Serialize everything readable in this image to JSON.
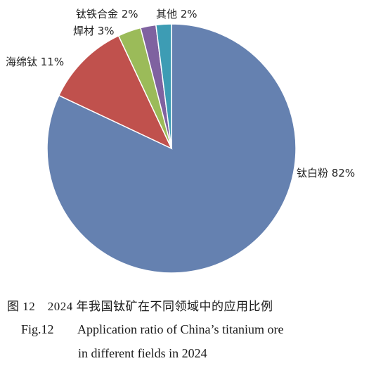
{
  "chart_data": {
    "type": "pie",
    "title": "",
    "slices": [
      {
        "label": "钛白粉",
        "value": 82,
        "display": "钛白粉 82%",
        "color": "#6581b0"
      },
      {
        "label": "海绵钛",
        "value": 11,
        "display": "海绵钛 11%",
        "color": "#c0514d"
      },
      {
        "label": "焊材",
        "value": 3,
        "display": "焊材 3%",
        "color": "#9bbb59"
      },
      {
        "label": "钛铁合金",
        "value": 2,
        "display": "钛铁合金 2%",
        "color": "#7f62a0"
      },
      {
        "label": "其他",
        "value": 2,
        "display": "其他 2%",
        "color": "#3d9cb4"
      }
    ]
  },
  "caption": {
    "chinese": "图 12　2024 年我国钛矿在不同领域中的应用比例",
    "english_fig": "Fig.12",
    "english_line1": "Application ratio of China’s titanium ore",
    "english_line2": "in different fields in 2024"
  }
}
